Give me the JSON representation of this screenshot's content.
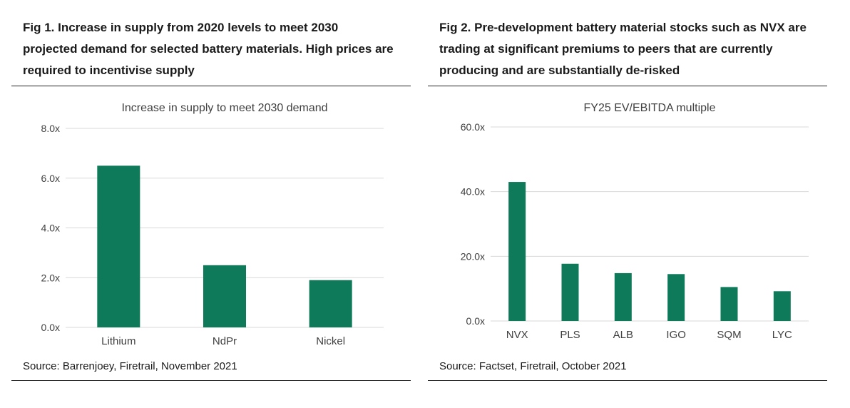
{
  "figures": [
    {
      "heading": "Fig 1. Increase in supply from 2020 levels to meet 2030 projected demand for selected battery materials. High prices are required to incentivise supply",
      "source": "Source: Barrenjoey, Firetrail, November 2021"
    },
    {
      "heading": "Fig 2. Pre-development battery material stocks such as NVX are trading at significant premiums to peers that are currently producing and are substantially de-risked",
      "source": "Source: Factset, Firetrail, October 2021"
    }
  ],
  "colors": {
    "bar": "#0f7a5a",
    "grid": "#d9d9d9",
    "text": "#404040"
  },
  "chart_data": [
    {
      "type": "bar",
      "title": "Increase in supply to meet 2030 demand",
      "categories": [
        "Lithium",
        "NdPr",
        "Nickel"
      ],
      "values": [
        6.5,
        2.5,
        1.9
      ],
      "ylim": [
        0,
        8
      ],
      "yticks": [
        0,
        2,
        4,
        6,
        8
      ],
      "ytick_labels": [
        "0.0x",
        "2.0x",
        "4.0x",
        "6.0x",
        "8.0x"
      ],
      "grid": true,
      "legend": "none"
    },
    {
      "type": "bar",
      "title": "FY25 EV/EBITDA multiple",
      "categories": [
        "NVX",
        "PLS",
        "ALB",
        "IGO",
        "SQM",
        "LYC"
      ],
      "values": [
        43,
        17.7,
        14.8,
        14.5,
        10.5,
        9.2
      ],
      "ylim": [
        0,
        60
      ],
      "yticks": [
        0,
        20,
        40,
        60
      ],
      "ytick_labels": [
        "0.0x",
        "20.0x",
        "40.0x",
        "60.0x"
      ],
      "grid": true,
      "legend": "none"
    }
  ]
}
